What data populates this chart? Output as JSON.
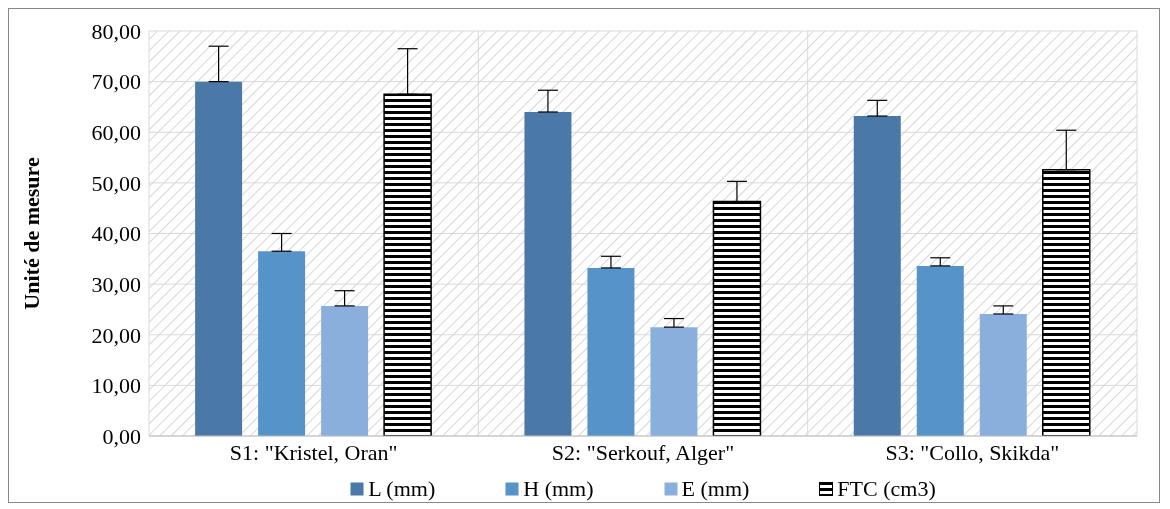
{
  "chart_data": {
    "type": "bar",
    "ylabel": "Unité de mesure",
    "categories": [
      "S1: \"Kristel, Oran\"",
      "S2: \"Serkouf, Alger\"",
      "S3: \"Collo, Skikda\""
    ],
    "series": [
      {
        "name": "L (mm)",
        "color": "#4a79a8",
        "values": [
          70,
          64,
          63.2
        ],
        "errors": [
          [
            70,
            77
          ],
          [
            64,
            68.3
          ],
          [
            63.2,
            66.3
          ]
        ]
      },
      {
        "name": "H (mm)",
        "color": "#5593c8",
        "values": [
          36.5,
          33.2,
          33.6
        ],
        "errors": [
          [
            36.5,
            40
          ],
          [
            33.2,
            35.5
          ],
          [
            33.6,
            35.2
          ]
        ]
      },
      {
        "name": "E (mm)",
        "color": "#8aafdd",
        "values": [
          25.7,
          21.5,
          24.1
        ],
        "errors": [
          [
            25.7,
            28.7
          ],
          [
            21.5,
            23.2
          ],
          [
            24.1,
            25.7
          ]
        ]
      },
      {
        "name": "FTC (cm3)",
        "color": "#000000",
        "values": [
          67.5,
          46.3,
          52.6
        ],
        "errors": [
          [
            67.5,
            76.5
          ],
          [
            46.3,
            50.3
          ],
          [
            52.6,
            60.4
          ]
        ]
      }
    ],
    "ylim": [
      0,
      80
    ],
    "yticks": [
      {
        "value": 0,
        "label": "0,00"
      },
      {
        "value": 10,
        "label": "10,00"
      },
      {
        "value": 20,
        "label": "20,00"
      },
      {
        "value": 30,
        "label": "30,00"
      },
      {
        "value": 40,
        "label": "40,00"
      },
      {
        "value": 50,
        "label": "50,00"
      },
      {
        "value": 60,
        "label": "60,00"
      },
      {
        "value": 70,
        "label": "70,00"
      },
      {
        "value": 80,
        "label": "80,00"
      }
    ],
    "grid": true,
    "legend": "bottom"
  }
}
